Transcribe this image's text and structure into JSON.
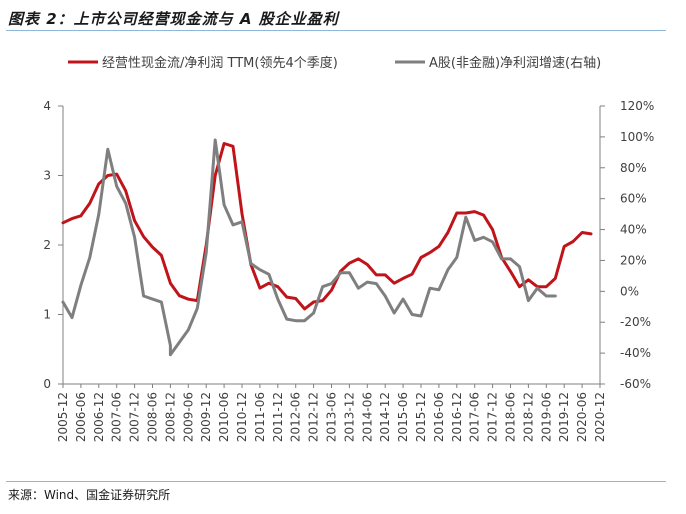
{
  "header": {
    "title": "图表 2：上市公司经营现金流与 A 股企业盈利"
  },
  "footer": {
    "source": "来源：Wind、国金证券研究所"
  },
  "colors": {
    "primary": "#c0141b",
    "secondary": "#7f7f7f"
  },
  "chart_data": {
    "type": "line",
    "legend": "top",
    "grid": false,
    "x_ticks": [
      "2005-12",
      "2006-06",
      "2006-12",
      "2007-06",
      "2007-12",
      "2008-06",
      "2008-12",
      "2009-06",
      "2009-12",
      "2010-06",
      "2010-12",
      "2011-06",
      "2011-12",
      "2012-06",
      "2012-12",
      "2013-06",
      "2013-12",
      "2014-06",
      "2014-12",
      "2015-06",
      "2015-12",
      "2016-06",
      "2016-12",
      "2017-06",
      "2017-12",
      "2018-06",
      "2018-12",
      "2019-06",
      "2019-12",
      "2020-06",
      "2020-12"
    ],
    "y_left": {
      "ticks": [
        "0",
        "1",
        "2",
        "3",
        "4"
      ],
      "min": 0,
      "max": 4
    },
    "y_right": {
      "ticks": [
        "-60%",
        "-40%",
        "-20%",
        "0%",
        "20%",
        "40%",
        "60%",
        "80%",
        "100%",
        "120%"
      ],
      "min": -60,
      "max": 120
    },
    "series": [
      {
        "name": "经营性现金流/净利润 TTM(领先4个季度)",
        "axis": "left",
        "points": [
          [
            "2005-12",
            2.32
          ],
          [
            "2006-03",
            2.38
          ],
          [
            "2006-06",
            2.42
          ],
          [
            "2006-09",
            2.6
          ],
          [
            "2006-12",
            2.88
          ],
          [
            "2007-03",
            3.0
          ],
          [
            "2007-06",
            3.02
          ],
          [
            "2007-09",
            2.78
          ],
          [
            "2007-12",
            2.35
          ],
          [
            "2008-03",
            2.12
          ],
          [
            "2008-06",
            1.97
          ],
          [
            "2008-09",
            1.85
          ],
          [
            "2008-12",
            1.45
          ],
          [
            "2009-03",
            1.27
          ],
          [
            "2009-06",
            1.22
          ],
          [
            "2009-09",
            1.2
          ],
          [
            "2009-12",
            2.0
          ],
          [
            "2010-03",
            3.0
          ],
          [
            "2010-06",
            3.46
          ],
          [
            "2010-09",
            3.42
          ],
          [
            "2010-12",
            2.45
          ],
          [
            "2011-03",
            1.72
          ],
          [
            "2011-06",
            1.38
          ],
          [
            "2011-09",
            1.45
          ],
          [
            "2011-12",
            1.4
          ],
          [
            "2012-03",
            1.25
          ],
          [
            "2012-06",
            1.23
          ],
          [
            "2012-09",
            1.08
          ],
          [
            "2012-12",
            1.18
          ],
          [
            "2013-03",
            1.2
          ],
          [
            "2013-06",
            1.35
          ],
          [
            "2013-09",
            1.62
          ],
          [
            "2013-12",
            1.74
          ],
          [
            "2014-03",
            1.8
          ],
          [
            "2014-06",
            1.72
          ],
          [
            "2014-09",
            1.57
          ],
          [
            "2014-12",
            1.57
          ],
          [
            "2015-03",
            1.45
          ],
          [
            "2015-06",
            1.52
          ],
          [
            "2015-09",
            1.58
          ],
          [
            "2015-12",
            1.82
          ],
          [
            "2016-03",
            1.89
          ],
          [
            "2016-06",
            1.98
          ],
          [
            "2016-09",
            2.18
          ],
          [
            "2016-12",
            2.46
          ],
          [
            "2017-03",
            2.46
          ],
          [
            "2017-06",
            2.48
          ],
          [
            "2017-09",
            2.43
          ],
          [
            "2017-12",
            2.22
          ],
          [
            "2018-03",
            1.82
          ],
          [
            "2018-06",
            1.62
          ],
          [
            "2018-09",
            1.4
          ],
          [
            "2018-12",
            1.5
          ],
          [
            "2019-03",
            1.4
          ],
          [
            "2019-06",
            1.4
          ],
          [
            "2019-09",
            1.52
          ],
          [
            "2019-12",
            1.98
          ],
          [
            "2020-03",
            2.05
          ],
          [
            "2020-06",
            2.18
          ],
          [
            "2020-09",
            2.16
          ]
        ]
      },
      {
        "name": "A股(非金融)净利润增速(右轴)",
        "axis": "right",
        "points": [
          [
            "2005-12",
            -7
          ],
          [
            "2006-03",
            -17
          ],
          [
            "2006-06",
            4
          ],
          [
            "2006-09",
            22
          ],
          [
            "2006-12",
            50
          ],
          [
            "2007-03",
            92
          ],
          [
            "2007-06",
            68
          ],
          [
            "2007-09",
            57
          ],
          [
            "2007-12",
            35
          ],
          [
            "2008-03",
            -3
          ],
          [
            "2008-06",
            -5
          ],
          [
            "2008-09",
            -7
          ],
          [
            "2008-12",
            -35
          ],
          [
            "2008-12",
            -41
          ],
          [
            "2009-06",
            -25
          ],
          [
            "2009-09",
            -11
          ],
          [
            "2009-12",
            25
          ],
          [
            "2010-03",
            98
          ],
          [
            "2010-06",
            56
          ],
          [
            "2010-09",
            43
          ],
          [
            "2010-12",
            45
          ],
          [
            "2011-03",
            18
          ],
          [
            "2011-06",
            14
          ],
          [
            "2011-09",
            11
          ],
          [
            "2011-12",
            -5
          ],
          [
            "2012-03",
            -18
          ],
          [
            "2012-06",
            -19
          ],
          [
            "2012-09",
            -19
          ],
          [
            "2012-12",
            -14
          ],
          [
            "2013-03",
            3
          ],
          [
            "2013-06",
            5
          ],
          [
            "2013-09",
            12
          ],
          [
            "2013-12",
            12
          ],
          [
            "2014-03",
            2
          ],
          [
            "2014-06",
            6
          ],
          [
            "2014-09",
            5
          ],
          [
            "2014-12",
            -3
          ],
          [
            "2015-03",
            -14
          ],
          [
            "2015-06",
            -5
          ],
          [
            "2015-09",
            -15
          ],
          [
            "2015-12",
            -16
          ],
          [
            "2016-03",
            2
          ],
          [
            "2016-06",
            1
          ],
          [
            "2016-09",
            14
          ],
          [
            "2016-12",
            22
          ],
          [
            "2017-03",
            48
          ],
          [
            "2017-06",
            33
          ],
          [
            "2017-09",
            35
          ],
          [
            "2017-12",
            32
          ],
          [
            "2018-03",
            21
          ],
          [
            "2018-06",
            21
          ],
          [
            "2018-09",
            16
          ],
          [
            "2018-12",
            -6
          ],
          [
            "2019-03",
            2
          ],
          [
            "2019-06",
            -3
          ],
          [
            "2019-09",
            -3
          ]
        ]
      }
    ]
  }
}
